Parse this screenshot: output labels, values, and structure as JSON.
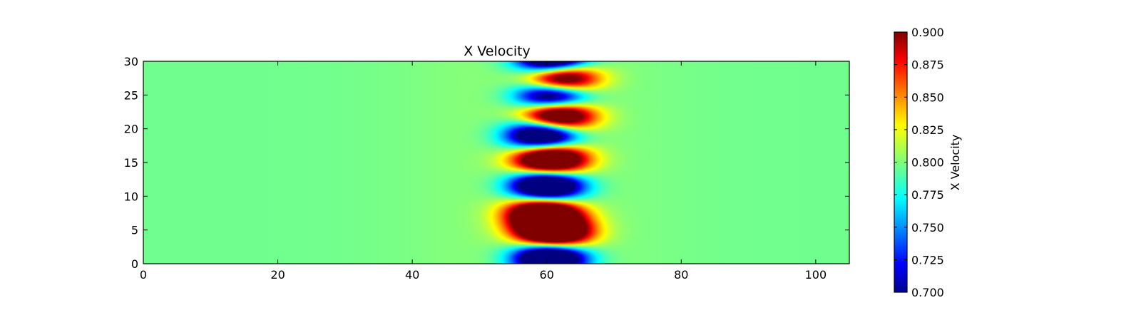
{
  "chart_data": {
    "type": "heatmap",
    "title": "X Velocity",
    "xlabel": "",
    "ylabel": "",
    "xlim": [
      0,
      105
    ],
    "ylim": [
      0,
      30
    ],
    "x_ticks": [
      0,
      20,
      40,
      60,
      80,
      100
    ],
    "y_ticks": [
      0,
      5,
      10,
      15,
      20,
      25,
      30
    ],
    "x_tick_labels": [
      "0",
      "20",
      "40",
      "60",
      "80",
      "100"
    ],
    "y_tick_labels": [
      "0",
      "5",
      "10",
      "15",
      "20",
      "25",
      "30"
    ],
    "colormap": "jet",
    "grid": false,
    "background_value": 0.797,
    "features": [
      {
        "kind": "low",
        "x": 60.5,
        "y": 1.0,
        "value": 0.7
      },
      {
        "kind": "high",
        "x": 61.0,
        "y": 4.5,
        "value": 0.9
      },
      {
        "kind": "high",
        "x": 59.5,
        "y": 7.5,
        "value": 0.89
      },
      {
        "kind": "low",
        "x": 60.0,
        "y": 11.5,
        "value": 0.7
      },
      {
        "kind": "high",
        "x": 60.5,
        "y": 15.5,
        "value": 0.9
      },
      {
        "kind": "low",
        "x": 59.5,
        "y": 19.0,
        "value": 0.7
      },
      {
        "kind": "high",
        "x": 61.5,
        "y": 22.0,
        "value": 0.9
      },
      {
        "kind": "low",
        "x": 61.0,
        "y": 24.8,
        "value": 0.7
      },
      {
        "kind": "high",
        "x": 62.0,
        "y": 27.5,
        "value": 0.9
      },
      {
        "kind": "low",
        "x": 61.0,
        "y": 30.0,
        "value": 0.7
      }
    ],
    "colorbar": {
      "label": "X Velocity",
      "range": [
        0.7,
        0.9
      ],
      "ticks": [
        0.7,
        0.725,
        0.75,
        0.775,
        0.8,
        0.825,
        0.85,
        0.875,
        0.9
      ],
      "tick_labels": [
        "0.700",
        "0.725",
        "0.750",
        "0.775",
        "0.800",
        "0.825",
        "0.850",
        "0.875",
        "0.900"
      ]
    }
  }
}
